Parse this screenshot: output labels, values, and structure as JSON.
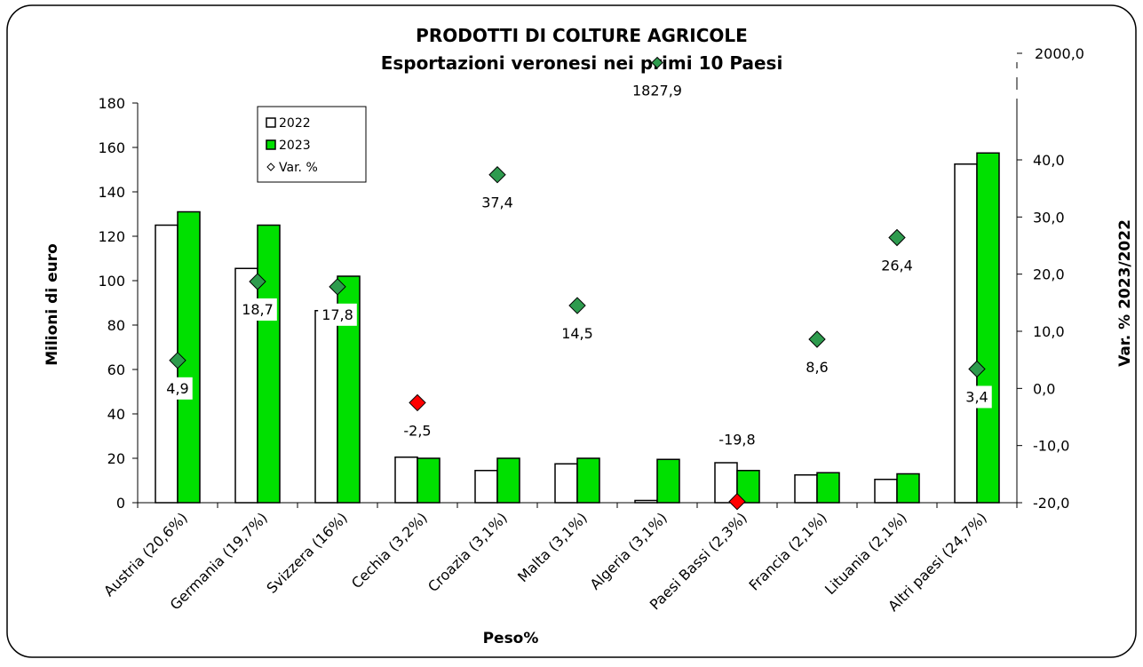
{
  "chart_data": {
    "type": "bar",
    "title": "PRODOTTI DI COLTURE AGRICOLE",
    "subtitle": "Esportazioni veronesi nei primi 10 Paesi",
    "y_label": "Milioni di euro",
    "y2_label": "Var. % 2023/2022",
    "x_label": "Peso%",
    "categories": [
      "Austria  (20,6%)",
      "Germania  (19,7%)",
      "Svizzera  (16%)",
      "Cechia (3,2%)",
      "Croazia  (3,1%)",
      "Malta  (3,1%)",
      "Algeria  (3,1%)",
      "Paesi Bassi (2,3%)",
      "Francia  (2,1%)",
      "Lituania  (2,1%)",
      "Altri paesi (24,7%)"
    ],
    "series": [
      {
        "name": "2022",
        "type": "bar",
        "color": "#ffffff",
        "values": [
          125,
          105.5,
          86.5,
          20.5,
          14.5,
          17.5,
          1,
          18,
          12.5,
          10.5,
          152.5
        ]
      },
      {
        "name": "2023",
        "type": "bar",
        "color": "#00e000",
        "values": [
          131,
          125,
          102,
          20,
          20,
          20,
          19.5,
          14.5,
          13.5,
          13,
          157.5
        ]
      },
      {
        "name": "Var. %",
        "type": "scatter",
        "axis": "y2",
        "color": "#2e9b4e",
        "negative_color": "#ff0000",
        "values": [
          4.9,
          18.7,
          17.8,
          -2.5,
          37.4,
          14.5,
          1827.9,
          -19.8,
          8.6,
          26.4,
          3.4
        ],
        "value_labels": [
          "4,9",
          "18,7",
          "17,8",
          "-2,5",
          "37,4",
          "14,5",
          "1827,9",
          "-19,8",
          "8,6",
          "26,4",
          "3,4"
        ]
      }
    ],
    "ylim": [
      0,
      180
    ],
    "yticks": [
      0,
      20,
      40,
      60,
      80,
      100,
      120,
      140,
      160,
      180
    ],
    "y2lim": [
      -20,
      2000
    ],
    "y2ticks": [
      {
        "value": -20,
        "label": "-20,0"
      },
      {
        "value": -10,
        "label": "-10,0"
      },
      {
        "value": 0,
        "label": "0,0"
      },
      {
        "value": 10,
        "label": "10,0"
      },
      {
        "value": 20,
        "label": "20,0"
      },
      {
        "value": 30,
        "label": "30,0"
      },
      {
        "value": 40,
        "label": "40,0"
      },
      {
        "value": 2000,
        "label": "2000,0"
      }
    ],
    "y2_broken": true,
    "legend": "top-left"
  }
}
